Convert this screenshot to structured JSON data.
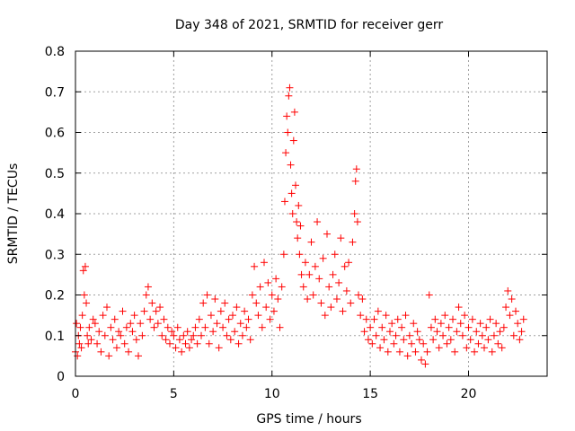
{
  "chart_data": {
    "type": "scatter",
    "title": "Day 348 of 2021, SRMTID for receiver gerr",
    "xlabel": "GPS time / hours",
    "ylabel": "SRMTID / TECUs",
    "xlim": [
      0,
      24
    ],
    "ylim": [
      0,
      0.8
    ],
    "x_ticks": [
      0,
      5,
      10,
      15,
      20
    ],
    "y_ticks": [
      0,
      0.1,
      0.2,
      0.3,
      0.4,
      0.5,
      0.6,
      0.7,
      0.8
    ],
    "x_tick_labels": [
      "0",
      "5",
      "10",
      "15",
      "20"
    ],
    "y_tick_labels": [
      "0",
      "0.1",
      "0.2",
      "0.3",
      "0.4",
      "0.5",
      "0.6",
      "0.7",
      "0.8"
    ],
    "grid": true,
    "marker": "+",
    "color": "#ff0000",
    "series": [
      {
        "name": "SRMTID",
        "points": [
          [
            0.0,
            0.06
          ],
          [
            0.05,
            0.13
          ],
          [
            0.1,
            0.05
          ],
          [
            0.15,
            0.1
          ],
          [
            0.2,
            0.08
          ],
          [
            0.25,
            0.12
          ],
          [
            0.3,
            0.07
          ],
          [
            0.35,
            0.15
          ],
          [
            0.4,
            0.26
          ],
          [
            0.45,
            0.2
          ],
          [
            0.5,
            0.27
          ],
          [
            0.55,
            0.18
          ],
          [
            0.6,
            0.1
          ],
          [
            0.65,
            0.08
          ],
          [
            0.7,
            0.12
          ],
          [
            0.8,
            0.09
          ],
          [
            0.9,
            0.14
          ],
          [
            1.0,
            0.13
          ],
          [
            1.1,
            0.08
          ],
          [
            1.2,
            0.11
          ],
          [
            1.3,
            0.06
          ],
          [
            1.4,
            0.15
          ],
          [
            1.5,
            0.1
          ],
          [
            1.6,
            0.17
          ],
          [
            1.7,
            0.05
          ],
          [
            1.8,
            0.12
          ],
          [
            1.9,
            0.09
          ],
          [
            2.0,
            0.14
          ],
          [
            2.1,
            0.07
          ],
          [
            2.2,
            0.11
          ],
          [
            2.3,
            0.1
          ],
          [
            2.4,
            0.16
          ],
          [
            2.5,
            0.08
          ],
          [
            2.6,
            0.12
          ],
          [
            2.7,
            0.06
          ],
          [
            2.8,
            0.13
          ],
          [
            2.9,
            0.11
          ],
          [
            3.0,
            0.15
          ],
          [
            3.1,
            0.09
          ],
          [
            3.2,
            0.05
          ],
          [
            3.3,
            0.13
          ],
          [
            3.4,
            0.1
          ],
          [
            3.5,
            0.16
          ],
          [
            3.6,
            0.2
          ],
          [
            3.7,
            0.22
          ],
          [
            3.8,
            0.14
          ],
          [
            3.9,
            0.18
          ],
          [
            4.0,
            0.12
          ],
          [
            4.1,
            0.16
          ],
          [
            4.2,
            0.13
          ],
          [
            4.3,
            0.17
          ],
          [
            4.4,
            0.1
          ],
          [
            4.5,
            0.14
          ],
          [
            4.6,
            0.09
          ],
          [
            4.7,
            0.12
          ],
          [
            4.8,
            0.08
          ],
          [
            4.9,
            0.11
          ],
          [
            5.0,
            0.1
          ],
          [
            5.1,
            0.07
          ],
          [
            5.2,
            0.12
          ],
          [
            5.3,
            0.09
          ],
          [
            5.4,
            0.06
          ],
          [
            5.5,
            0.1
          ],
          [
            5.6,
            0.08
          ],
          [
            5.7,
            0.11
          ],
          [
            5.8,
            0.07
          ],
          [
            5.9,
            0.09
          ],
          [
            6.0,
            0.1
          ],
          [
            6.1,
            0.12
          ],
          [
            6.2,
            0.08
          ],
          [
            6.3,
            0.14
          ],
          [
            6.4,
            0.1
          ],
          [
            6.5,
            0.18
          ],
          [
            6.6,
            0.12
          ],
          [
            6.7,
            0.2
          ],
          [
            6.8,
            0.08
          ],
          [
            6.9,
            0.15
          ],
          [
            7.0,
            0.11
          ],
          [
            7.1,
            0.19
          ],
          [
            7.2,
            0.13
          ],
          [
            7.3,
            0.07
          ],
          [
            7.4,
            0.16
          ],
          [
            7.5,
            0.12
          ],
          [
            7.6,
            0.18
          ],
          [
            7.7,
            0.1
          ],
          [
            7.8,
            0.14
          ],
          [
            7.9,
            0.09
          ],
          [
            8.0,
            0.15
          ],
          [
            8.1,
            0.11
          ],
          [
            8.2,
            0.17
          ],
          [
            8.3,
            0.08
          ],
          [
            8.4,
            0.13
          ],
          [
            8.5,
            0.1
          ],
          [
            8.6,
            0.16
          ],
          [
            8.7,
            0.12
          ],
          [
            8.8,
            0.14
          ],
          [
            8.9,
            0.09
          ],
          [
            9.0,
            0.2
          ],
          [
            9.1,
            0.27
          ],
          [
            9.2,
            0.18
          ],
          [
            9.3,
            0.15
          ],
          [
            9.4,
            0.22
          ],
          [
            9.5,
            0.12
          ],
          [
            9.6,
            0.28
          ],
          [
            9.7,
            0.17
          ],
          [
            9.8,
            0.23
          ],
          [
            9.9,
            0.14
          ],
          [
            10.0,
            0.2
          ],
          [
            10.1,
            0.16
          ],
          [
            10.2,
            0.24
          ],
          [
            10.3,
            0.19
          ],
          [
            10.4,
            0.12
          ],
          [
            10.5,
            0.22
          ],
          [
            10.6,
            0.3
          ],
          [
            10.65,
            0.43
          ],
          [
            10.7,
            0.55
          ],
          [
            10.75,
            0.64
          ],
          [
            10.8,
            0.6
          ],
          [
            10.85,
            0.69
          ],
          [
            10.9,
            0.71
          ],
          [
            10.95,
            0.52
          ],
          [
            11.0,
            0.45
          ],
          [
            11.05,
            0.4
          ],
          [
            11.1,
            0.58
          ],
          [
            11.15,
            0.65
          ],
          [
            11.2,
            0.47
          ],
          [
            11.25,
            0.38
          ],
          [
            11.3,
            0.34
          ],
          [
            11.35,
            0.42
          ],
          [
            11.4,
            0.3
          ],
          [
            11.45,
            0.37
          ],
          [
            11.5,
            0.25
          ],
          [
            11.6,
            0.22
          ],
          [
            11.7,
            0.28
          ],
          [
            11.8,
            0.19
          ],
          [
            11.9,
            0.25
          ],
          [
            12.0,
            0.33
          ],
          [
            12.1,
            0.2
          ],
          [
            12.2,
            0.27
          ],
          [
            12.3,
            0.38
          ],
          [
            12.4,
            0.24
          ],
          [
            12.5,
            0.18
          ],
          [
            12.6,
            0.29
          ],
          [
            12.7,
            0.15
          ],
          [
            12.8,
            0.35
          ],
          [
            12.9,
            0.22
          ],
          [
            13.0,
            0.17
          ],
          [
            13.1,
            0.25
          ],
          [
            13.2,
            0.3
          ],
          [
            13.3,
            0.19
          ],
          [
            13.4,
            0.23
          ],
          [
            13.5,
            0.34
          ],
          [
            13.6,
            0.16
          ],
          [
            13.7,
            0.27
          ],
          [
            13.8,
            0.21
          ],
          [
            13.9,
            0.28
          ],
          [
            14.0,
            0.18
          ],
          [
            14.1,
            0.33
          ],
          [
            14.2,
            0.4
          ],
          [
            14.25,
            0.48
          ],
          [
            14.3,
            0.51
          ],
          [
            14.35,
            0.38
          ],
          [
            14.4,
            0.2
          ],
          [
            14.5,
            0.15
          ],
          [
            14.6,
            0.19
          ],
          [
            14.7,
            0.11
          ],
          [
            14.8,
            0.14
          ],
          [
            14.9,
            0.09
          ],
          [
            15.0,
            0.12
          ],
          [
            15.1,
            0.08
          ],
          [
            15.2,
            0.14
          ],
          [
            15.3,
            0.1
          ],
          [
            15.4,
            0.16
          ],
          [
            15.5,
            0.07
          ],
          [
            15.6,
            0.12
          ],
          [
            15.7,
            0.09
          ],
          [
            15.8,
            0.15
          ],
          [
            15.9,
            0.06
          ],
          [
            16.0,
            0.11
          ],
          [
            16.1,
            0.13
          ],
          [
            16.2,
            0.08
          ],
          [
            16.3,
            0.1
          ],
          [
            16.4,
            0.14
          ],
          [
            16.5,
            0.06
          ],
          [
            16.6,
            0.12
          ],
          [
            16.7,
            0.09
          ],
          [
            16.8,
            0.15
          ],
          [
            16.9,
            0.05
          ],
          [
            17.0,
            0.1
          ],
          [
            17.1,
            0.08
          ],
          [
            17.2,
            0.13
          ],
          [
            17.3,
            0.06
          ],
          [
            17.4,
            0.11
          ],
          [
            17.5,
            0.09
          ],
          [
            17.6,
            0.04
          ],
          [
            17.7,
            0.08
          ],
          [
            17.8,
            0.03
          ],
          [
            17.9,
            0.06
          ],
          [
            18.0,
            0.2
          ],
          [
            18.1,
            0.12
          ],
          [
            18.2,
            0.09
          ],
          [
            18.3,
            0.14
          ],
          [
            18.4,
            0.11
          ],
          [
            18.5,
            0.07
          ],
          [
            18.6,
            0.13
          ],
          [
            18.7,
            0.1
          ],
          [
            18.8,
            0.15
          ],
          [
            18.9,
            0.08
          ],
          [
            19.0,
            0.12
          ],
          [
            19.1,
            0.09
          ],
          [
            19.2,
            0.14
          ],
          [
            19.3,
            0.06
          ],
          [
            19.4,
            0.11
          ],
          [
            19.5,
            0.17
          ],
          [
            19.6,
            0.13
          ],
          [
            19.7,
            0.1
          ],
          [
            19.8,
            0.15
          ],
          [
            19.9,
            0.07
          ],
          [
            20.0,
            0.12
          ],
          [
            20.1,
            0.09
          ],
          [
            20.2,
            0.14
          ],
          [
            20.3,
            0.06
          ],
          [
            20.4,
            0.11
          ],
          [
            20.5,
            0.08
          ],
          [
            20.6,
            0.13
          ],
          [
            20.7,
            0.1
          ],
          [
            20.8,
            0.07
          ],
          [
            20.9,
            0.12
          ],
          [
            21.0,
            0.09
          ],
          [
            21.1,
            0.14
          ],
          [
            21.2,
            0.06
          ],
          [
            21.3,
            0.1
          ],
          [
            21.4,
            0.13
          ],
          [
            21.5,
            0.08
          ],
          [
            21.6,
            0.11
          ],
          [
            21.7,
            0.07
          ],
          [
            21.8,
            0.12
          ],
          [
            21.9,
            0.17
          ],
          [
            22.0,
            0.21
          ],
          [
            22.1,
            0.15
          ],
          [
            22.2,
            0.19
          ],
          [
            22.3,
            0.1
          ],
          [
            22.4,
            0.16
          ],
          [
            22.5,
            0.13
          ],
          [
            22.6,
            0.09
          ],
          [
            22.7,
            0.11
          ],
          [
            22.8,
            0.14
          ]
        ]
      }
    ]
  }
}
